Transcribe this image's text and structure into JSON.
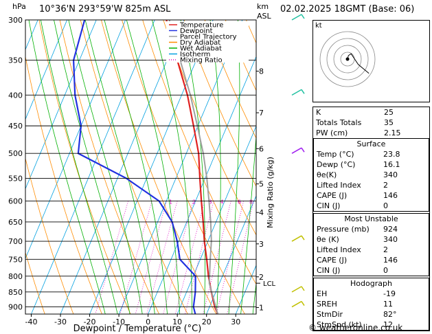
{
  "header": {
    "left_unit": "hPa",
    "location": "10°36'N  293°59'W  825m  ASL",
    "right_unit_top": "km",
    "right_unit_bottom": "ASL",
    "datetime": "02.02.2025  18GMT  (Base: 06)"
  },
  "colors": {
    "temperature": "#e02020",
    "dewpoint": "#2030e0",
    "parcel": "#a0a0a0",
    "dry_adiabat": "#ff8c00",
    "wet_adiabat": "#00b000",
    "isotherm": "#00a0e0",
    "mixing_ratio": "#e000c0",
    "hodo_ring": "#888888"
  },
  "legend": [
    {
      "label": "Temperature",
      "color": "#e02020",
      "style": "solid"
    },
    {
      "label": "Dewpoint",
      "color": "#2030e0",
      "style": "solid"
    },
    {
      "label": "Parcel Trajectory",
      "color": "#a0a0a0",
      "style": "solid"
    },
    {
      "label": "Dry Adiabat",
      "color": "#ff8c00",
      "style": "solid"
    },
    {
      "label": "Wet Adiabat",
      "color": "#00b000",
      "style": "solid"
    },
    {
      "label": "Isotherm",
      "color": "#00a0e0",
      "style": "solid"
    },
    {
      "label": "Mixing Ratio",
      "color": "#e000c0",
      "style": "dotted"
    }
  ],
  "chart_data": {
    "type": "line",
    "xlabel": "Dewpoint / Temperature (°C)",
    "ylabel_right": "Mixing Ratio (g/kg)",
    "x_ticks": [
      -40,
      -30,
      -20,
      -10,
      0,
      10,
      20,
      30
    ],
    "xlim": [
      -42,
      37
    ],
    "pressure_ticks": [
      300,
      350,
      400,
      450,
      500,
      550,
      600,
      650,
      700,
      750,
      800,
      850,
      900
    ],
    "plim": [
      300,
      925
    ],
    "km_ticks": [
      {
        "label": "8",
        "p": 365
      },
      {
        "label": "7",
        "p": 428
      },
      {
        "label": "6",
        "p": 491
      },
      {
        "label": "5",
        "p": 562
      },
      {
        "label": "4",
        "p": 627
      },
      {
        "label": "3",
        "p": 707
      },
      {
        "label": "2",
        "p": 802
      },
      {
        "label": "1",
        "p": 902
      }
    ],
    "lcl": {
      "label": "LCL",
      "p": 822
    },
    "mixing_ratio_labels": [
      {
        "label": "1",
        "x": -8.5
      },
      {
        "label": "2",
        "x": -0.5
      },
      {
        "label": "3",
        "x": 5
      },
      {
        "label": "4",
        "x": 9
      },
      {
        "label": "6",
        "x": 15
      },
      {
        "label": "8",
        "x": 19
      },
      {
        "label": "10",
        "x": 22.5
      },
      {
        "label": "15",
        "x": 29
      },
      {
        "label": "20",
        "x": 33
      },
      {
        "label": "25",
        "x": 35.5
      }
    ],
    "series": [
      {
        "name": "Temperature",
        "points": [
          [
            924,
            23.8
          ],
          [
            900,
            21.8
          ],
          [
            850,
            18.5
          ],
          [
            800,
            15.2
          ],
          [
            750,
            12.2
          ],
          [
            700,
            8.8
          ],
          [
            650,
            5.6
          ],
          [
            600,
            2.0
          ],
          [
            550,
            -1.8
          ],
          [
            500,
            -5.8
          ],
          [
            450,
            -11.5
          ],
          [
            400,
            -18.0
          ],
          [
            350,
            -26.5
          ],
          [
            300,
            -36.0
          ]
        ]
      },
      {
        "name": "Dewpoint",
        "points": [
          [
            924,
            16.1
          ],
          [
            900,
            14.5
          ],
          [
            850,
            13.0
          ],
          [
            800,
            10.8
          ],
          [
            750,
            3.0
          ],
          [
            700,
            -0.5
          ],
          [
            650,
            -5.0
          ],
          [
            600,
            -12.5
          ],
          [
            550,
            -27.0
          ],
          [
            500,
            -47.0
          ],
          [
            450,
            -50.0
          ],
          [
            400,
            -56.5
          ],
          [
            350,
            -62.0
          ],
          [
            300,
            -64.0
          ]
        ]
      },
      {
        "name": "Parcel Trajectory",
        "points": [
          [
            924,
            23.8
          ],
          [
            822,
            16.5
          ],
          [
            750,
            13.4
          ],
          [
            700,
            11.2
          ],
          [
            650,
            8.2
          ],
          [
            600,
            4.6
          ],
          [
            550,
            0.6
          ],
          [
            500,
            -4.2
          ],
          [
            450,
            -10.2
          ],
          [
            400,
            -17.0
          ],
          [
            350,
            -25.5
          ],
          [
            300,
            -35.0
          ]
        ]
      }
    ]
  },
  "hodograph": {
    "label": "kt",
    "trace": [
      [
        0,
        0
      ],
      [
        -0.5,
        2
      ],
      [
        -2,
        3
      ],
      [
        -6,
        -3
      ],
      [
        -12,
        -8
      ]
    ]
  },
  "indices": {
    "top": [
      {
        "label": "K",
        "value": "25"
      },
      {
        "label": "Totals Totals",
        "value": "35"
      },
      {
        "label": "PW (cm)",
        "value": "2.15"
      }
    ],
    "surface": {
      "title": "Surface",
      "rows": [
        {
          "label": "Temp (°C)",
          "value": "23.8"
        },
        {
          "label": "Dewp (°C)",
          "value": "16.1"
        },
        {
          "label": "θe(K)",
          "value": "340"
        },
        {
          "label": "Lifted Index",
          "value": "2"
        },
        {
          "label": "CAPE (J)",
          "value": "146"
        },
        {
          "label": "CIN (J)",
          "value": "0"
        }
      ]
    },
    "most_unstable": {
      "title": "Most Unstable",
      "rows": [
        {
          "label": "Pressure (mb)",
          "value": "924"
        },
        {
          "label": "θe (K)",
          "value": "340"
        },
        {
          "label": "Lifted Index",
          "value": "2"
        },
        {
          "label": "CAPE (J)",
          "value": "146"
        },
        {
          "label": "CIN (J)",
          "value": "0"
        }
      ]
    },
    "hodograph_box": {
      "title": "Hodograph",
      "rows": [
        {
          "label": "EH",
          "value": "-19"
        },
        {
          "label": "SREH",
          "value": "11"
        },
        {
          "label": "StmDir",
          "value": "82°"
        },
        {
          "label": "StmSpd (kt)",
          "value": "12"
        }
      ]
    }
  },
  "footer": "© weatheronline.co.uk"
}
